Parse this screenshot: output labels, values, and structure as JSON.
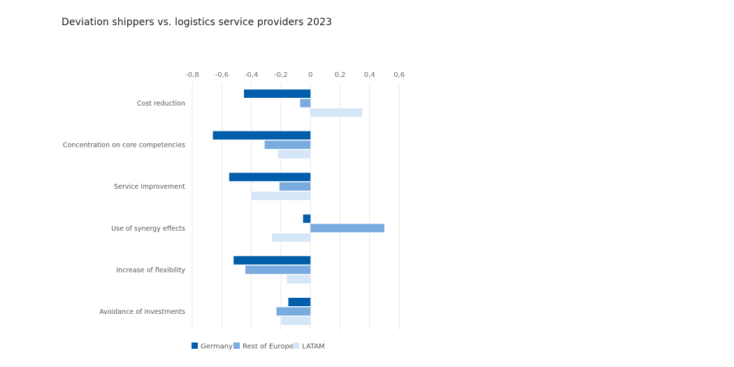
{
  "chart_data": {
    "type": "bar",
    "orientation": "horizontal",
    "title": "Deviation shippers vs. logistics service providers 2023",
    "xlabel": "",
    "ylabel": "",
    "xlim": [
      -0.8,
      0.6
    ],
    "ticks": [
      -0.8,
      -0.6,
      -0.4,
      -0.2,
      0,
      0.2,
      0.4,
      0.6
    ],
    "tick_labels": [
      "-0,8",
      "-0,6",
      "-0,4",
      "-0,2",
      "0",
      "0,2",
      "0,4",
      "0,6"
    ],
    "grid": true,
    "legend_position": "bottom",
    "categories": [
      "Cost reduction",
      "Concentration on core competencies",
      "Service improvement",
      "Use of synergy effects",
      "Increase of flexibility",
      "Avoidance of investments"
    ],
    "series": [
      {
        "name": "Germany",
        "color": "#005eaa",
        "values": [
          -0.45,
          -0.66,
          -0.55,
          -0.05,
          -0.52,
          -0.15
        ]
      },
      {
        "name": "Rest of Europe",
        "color": "#7aabdf",
        "values": [
          -0.07,
          -0.31,
          -0.21,
          0.5,
          -0.44,
          -0.23
        ]
      },
      {
        "name": "LATAM",
        "color": "#d4e6f8",
        "values": [
          0.35,
          -0.22,
          -0.4,
          -0.26,
          -0.16,
          -0.2
        ]
      }
    ]
  }
}
